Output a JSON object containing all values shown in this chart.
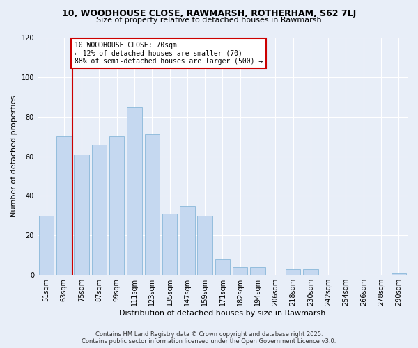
{
  "title": "10, WOODHOUSE CLOSE, RAWMARSH, ROTHERHAM, S62 7LJ",
  "subtitle": "Size of property relative to detached houses in Rawmarsh",
  "xlabel": "Distribution of detached houses by size in Rawmarsh",
  "ylabel": "Number of detached properties",
  "categories": [
    "51sqm",
    "63sqm",
    "75sqm",
    "87sqm",
    "99sqm",
    "111sqm",
    "123sqm",
    "135sqm",
    "147sqm",
    "159sqm",
    "171sqm",
    "182sqm",
    "194sqm",
    "206sqm",
    "218sqm",
    "230sqm",
    "242sqm",
    "254sqm",
    "266sqm",
    "278sqm",
    "290sqm"
  ],
  "values": [
    30,
    70,
    61,
    66,
    70,
    85,
    71,
    31,
    35,
    30,
    8,
    4,
    4,
    0,
    3,
    3,
    0,
    0,
    0,
    0,
    1
  ],
  "bar_color": "#c5d8f0",
  "bar_edge_color": "#7aafd4",
  "highlight_color": "#cc0000",
  "vline_x": 1.5,
  "annotation_text": "10 WOODHOUSE CLOSE: 70sqm\n← 12% of detached houses are smaller (70)\n88% of semi-detached houses are larger (500) →",
  "annotation_box_color": "#ffffff",
  "annotation_box_edge": "#cc0000",
  "ylim": [
    0,
    120
  ],
  "yticks": [
    0,
    20,
    40,
    60,
    80,
    100,
    120
  ],
  "footer_line1": "Contains HM Land Registry data © Crown copyright and database right 2025.",
  "footer_line2": "Contains public sector information licensed under the Open Government Licence v3.0.",
  "bg_color": "#e8eef8",
  "plot_bg_color": "#e8eef8",
  "grid_color": "#ffffff",
  "title_fontsize": 9,
  "subtitle_fontsize": 8,
  "ylabel_fontsize": 8,
  "xlabel_fontsize": 8,
  "tick_fontsize": 7,
  "ann_fontsize": 7,
  "footer_fontsize": 6
}
